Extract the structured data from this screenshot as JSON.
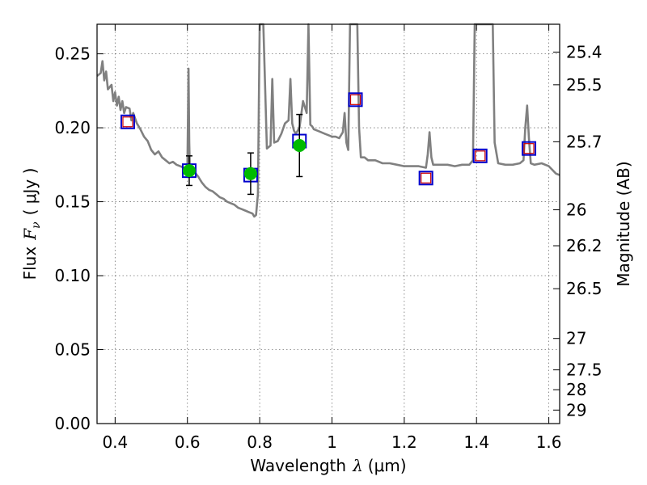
{
  "chart_data": {
    "type": "scatter",
    "title": "",
    "xlabel_prefix": "Wavelength",
    "xlabel_symbol": "λ",
    "xlabel_unit": "(μm)",
    "ylabel_prefix": "Flux",
    "ylabel_symbol": "F",
    "ylabel_sub": "ν",
    "ylabel_unit": "( μJy )",
    "y2label": "Magnitude (AB)",
    "xlim": [
      0.35,
      1.63
    ],
    "ylim": [
      0.0,
      0.27
    ],
    "grid": true,
    "x_ticks": [
      0.4,
      0.6,
      0.8,
      1.0,
      1.2,
      1.4,
      1.6
    ],
    "x_tick_labels": [
      "0.4",
      "0.6",
      "0.8",
      "1",
      "1.2",
      "1.4",
      "1.6"
    ],
    "y_ticks": [
      0.0,
      0.05,
      0.1,
      0.15,
      0.2,
      0.25
    ],
    "y_tick_labels": [
      "0.00",
      "0.05",
      "0.10",
      "0.15",
      "0.20",
      "0.25"
    ],
    "mag_ticks": [
      "25.4",
      "25.5",
      "25.7",
      "26",
      "26.2",
      "26.5",
      "27",
      "27.5",
      "28",
      "29"
    ],
    "colors": {
      "spectrum": "#808080",
      "observed": "#00bb00",
      "model_box": "#0000cc",
      "upper_box": "#cc0000"
    },
    "spectrum": {
      "x": [
        0.35,
        0.36,
        0.365,
        0.37,
        0.375,
        0.38,
        0.39,
        0.395,
        0.4,
        0.405,
        0.41,
        0.415,
        0.42,
        0.425,
        0.43,
        0.44,
        0.445,
        0.45,
        0.46,
        0.47,
        0.48,
        0.49,
        0.5,
        0.51,
        0.52,
        0.53,
        0.54,
        0.55,
        0.56,
        0.57,
        0.58,
        0.59,
        0.6,
        0.603,
        0.605,
        0.607,
        0.61,
        0.62,
        0.63,
        0.64,
        0.65,
        0.66,
        0.67,
        0.68,
        0.69,
        0.7,
        0.71,
        0.72,
        0.73,
        0.74,
        0.75,
        0.76,
        0.77,
        0.78,
        0.785,
        0.79,
        0.795,
        0.8,
        0.803,
        0.805,
        0.808,
        0.81,
        0.82,
        0.83,
        0.835,
        0.84,
        0.85,
        0.86,
        0.87,
        0.88,
        0.885,
        0.89,
        0.895,
        0.9,
        0.91,
        0.92,
        0.93,
        0.935,
        0.94,
        0.945,
        0.95,
        0.96,
        0.97,
        0.98,
        0.99,
        1.0,
        1.01,
        1.02,
        1.03,
        1.035,
        1.04,
        1.045,
        1.05,
        1.06,
        1.065,
        1.07,
        1.075,
        1.08,
        1.09,
        1.1,
        1.12,
        1.14,
        1.16,
        1.18,
        1.2,
        1.22,
        1.24,
        1.26,
        1.265,
        1.27,
        1.275,
        1.28,
        1.3,
        1.32,
        1.34,
        1.36,
        1.38,
        1.39,
        1.395,
        1.4,
        1.41,
        1.42,
        1.43,
        1.435,
        1.44,
        1.445,
        1.45,
        1.46,
        1.48,
        1.5,
        1.52,
        1.53,
        1.535,
        1.54,
        1.545,
        1.55,
        1.56,
        1.58,
        1.6,
        1.62,
        1.63
      ],
      "y": [
        0.235,
        0.237,
        0.245,
        0.232,
        0.238,
        0.226,
        0.229,
        0.218,
        0.224,
        0.215,
        0.221,
        0.212,
        0.218,
        0.21,
        0.214,
        0.213,
        0.205,
        0.21,
        0.203,
        0.199,
        0.194,
        0.191,
        0.185,
        0.182,
        0.184,
        0.18,
        0.178,
        0.176,
        0.177,
        0.175,
        0.174,
        0.173,
        0.172,
        0.24,
        0.19,
        0.171,
        0.173,
        0.17,
        0.167,
        0.163,
        0.16,
        0.158,
        0.157,
        0.155,
        0.153,
        0.152,
        0.15,
        0.149,
        0.148,
        0.146,
        0.145,
        0.144,
        0.143,
        0.142,
        0.14,
        0.141,
        0.155,
        0.27,
        0.27,
        0.27,
        0.27,
        0.27,
        0.186,
        0.188,
        0.233,
        0.19,
        0.191,
        0.196,
        0.203,
        0.205,
        0.233,
        0.203,
        0.198,
        0.196,
        0.2,
        0.218,
        0.21,
        0.27,
        0.202,
        0.201,
        0.199,
        0.198,
        0.197,
        0.196,
        0.195,
        0.194,
        0.194,
        0.193,
        0.197,
        0.21,
        0.19,
        0.185,
        0.27,
        0.27,
        0.27,
        0.27,
        0.2,
        0.18,
        0.18,
        0.178,
        0.178,
        0.176,
        0.176,
        0.175,
        0.174,
        0.174,
        0.174,
        0.173,
        0.182,
        0.197,
        0.18,
        0.175,
        0.175,
        0.175,
        0.174,
        0.175,
        0.175,
        0.178,
        0.27,
        0.27,
        0.27,
        0.27,
        0.27,
        0.27,
        0.27,
        0.27,
        0.19,
        0.176,
        0.175,
        0.175,
        0.176,
        0.178,
        0.2,
        0.215,
        0.193,
        0.176,
        0.175,
        0.176,
        0.174,
        0.169,
        0.168
      ]
    },
    "observed": {
      "x": [
        0.605,
        0.775,
        0.91
      ],
      "y": [
        0.171,
        0.169,
        0.188
      ],
      "yerr": [
        0.01,
        0.014,
        0.021
      ]
    },
    "model_points": {
      "x": [
        0.435,
        0.605,
        0.775,
        0.91,
        1.065,
        1.26,
        1.41,
        1.545
      ],
      "y": [
        0.204,
        0.171,
        0.168,
        0.191,
        0.219,
        0.166,
        0.181,
        0.186
      ]
    },
    "upper_points": {
      "x": [
        0.435,
        1.065,
        1.26,
        1.41,
        1.545
      ],
      "y": [
        0.204,
        0.219,
        0.166,
        0.181,
        0.186
      ]
    }
  }
}
